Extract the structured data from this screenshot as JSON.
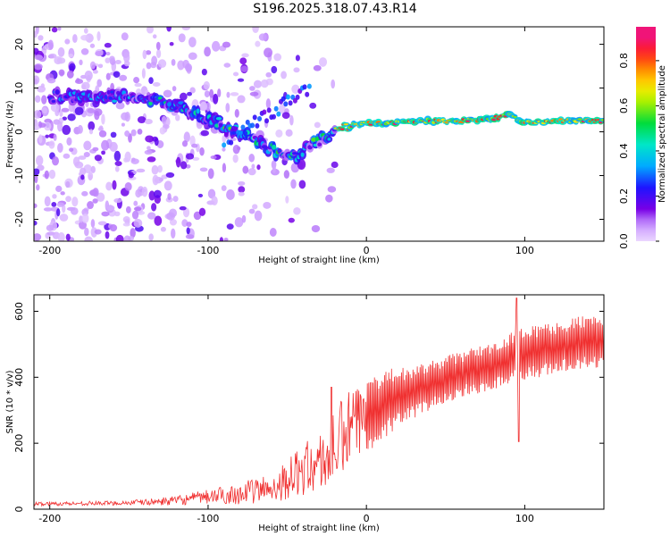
{
  "title": "S196.2025.318.07.43.R14",
  "colors": {
    "series": "#f03030",
    "frame": "#000000",
    "grid": "#cccccc"
  },
  "chart_data": [
    {
      "type": "heatmap",
      "xlabel": "Height of straight line (km)",
      "ylabel": "Frequency (Hz)",
      "xlim": [
        -210,
        150
      ],
      "ylim": [
        -25,
        24
      ],
      "xticks": [
        -200,
        -100,
        0,
        100
      ],
      "yticks": [
        -20,
        -10,
        0,
        10,
        20
      ],
      "colorbar": {
        "label": "Normalized spectral amplitude",
        "range": [
          0.0,
          0.95
        ],
        "ticks": [
          0.0,
          0.2,
          0.4,
          0.6,
          0.8
        ],
        "tick_labels": [
          "0.0",
          "0.2",
          "0.4",
          "0.6",
          "0.8"
        ]
      },
      "ridge": {
        "x": [
          -200,
          -180,
          -160,
          -140,
          -120,
          -100,
          -80,
          -60,
          -45,
          -35,
          -25,
          -15,
          0,
          20,
          40,
          60,
          80,
          90,
          100,
          120,
          150
        ],
        "freq": [
          8,
          8,
          8,
          7.5,
          6,
          3,
          0,
          -4,
          -6,
          -3,
          -1,
          1,
          2,
          2,
          2.5,
          2.5,
          3,
          4,
          2,
          2.5,
          2.5
        ]
      }
    },
    {
      "type": "line",
      "xlabel": "Height of straight line (km)",
      "ylabel": "SNR (10 * v/v)",
      "xlim": [
        -210,
        150
      ],
      "ylim": [
        0,
        650
      ],
      "xticks": [
        -200,
        -100,
        0,
        100
      ],
      "yticks": [
        0,
        200,
        400,
        600
      ],
      "series": [
        {
          "name": "SNR",
          "envelope_x": [
            -210,
            -160,
            -140,
            -120,
            -100,
            -80,
            -60,
            -50,
            -40,
            -30,
            -25,
            -20,
            -15,
            -10,
            0,
            10,
            20,
            40,
            60,
            80,
            90,
            95,
            100,
            110,
            120,
            130,
            140,
            150
          ],
          "envelope_low": [
            10,
            12,
            12,
            12,
            15,
            15,
            20,
            30,
            40,
            50,
            60,
            70,
            90,
            120,
            170,
            210,
            250,
            300,
            340,
            360,
            380,
            390,
            390,
            400,
            410,
            420,
            420,
            420
          ],
          "envelope_high": [
            22,
            25,
            30,
            40,
            60,
            80,
            110,
            150,
            200,
            230,
            240,
            300,
            340,
            370,
            380,
            420,
            430,
            450,
            480,
            510,
            530,
            550,
            550,
            560,
            570,
            580,
            590,
            590
          ],
          "spikes": [
            {
              "x": -22,
              "value": 370
            },
            {
              "x": 95,
              "value": 640
            },
            {
              "x": 96,
              "value": 205
            }
          ]
        }
      ]
    }
  ]
}
